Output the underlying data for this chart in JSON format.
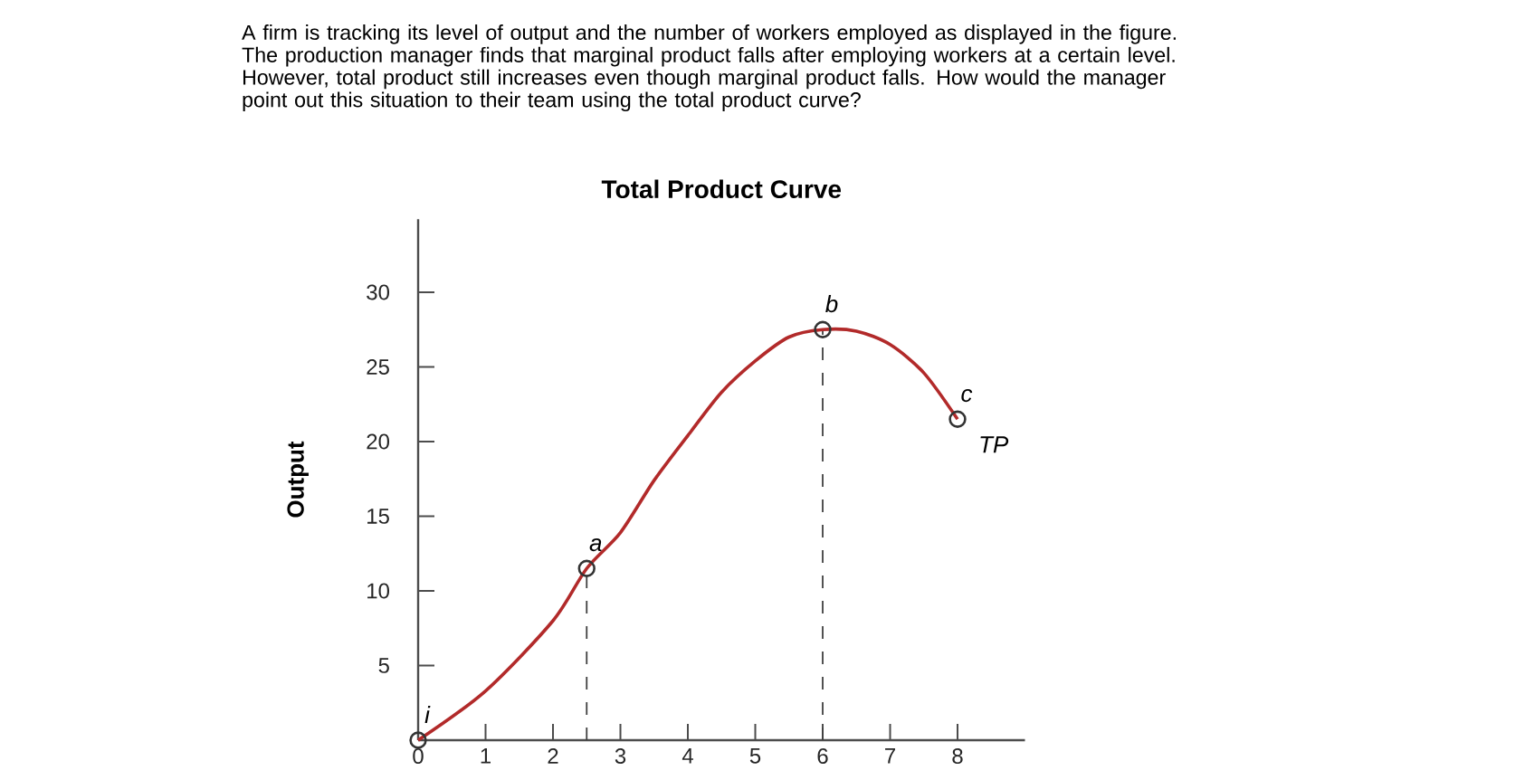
{
  "chart_data": {
    "type": "line",
    "title": "Total Product Curve",
    "ylabel": "Output",
    "annotations": [
      "A firm is tracking its level of output and the number of workers employed as displayed in the figure. The production manager finds that marginal product falls after employing workers at a certain level. However, total product still increases even though marginal product falls. How would the manager point out this situation to their team using the total product curve?",
      {
        "text": "i",
        "x": 0,
        "y": 0
      },
      {
        "text": "a",
        "x": 2.5,
        "y": 11.5
      },
      {
        "text": "b",
        "x": 6,
        "y": 27.5
      },
      {
        "text": "c",
        "x": 8,
        "y": 21.5
      }
    ],
    "series": [
      {
        "name": "TP",
        "color": "#b22a2a",
        "marker": "none",
        "line_style": "solid",
        "x": [
          0,
          1,
          2,
          2.5,
          3,
          3.5,
          4,
          4.5,
          5,
          5.5,
          6,
          6.5,
          7,
          7.5,
          8
        ],
        "values": [
          0,
          3.3,
          8,
          11.5,
          13.9,
          17.4,
          20.4,
          23.3,
          25.4,
          27,
          27.5,
          27.4,
          26.5,
          24.6,
          21.5
        ]
      },
      {
        "type": "scatter",
        "color": "#333333",
        "marker": "circle",
        "x": [
          0,
          2.5,
          6,
          8
        ],
        "values": [
          0,
          11.5,
          27.5,
          21.5
        ]
      }
    ],
    "ref_lines": [
      {
        "axis": "x",
        "value": 2.5,
        "line_style": "dashed"
      },
      {
        "axis": "x",
        "value": 6,
        "line_style": "dashed"
      }
    ],
    "xlim": [
      0,
      9
    ],
    "ylim": [
      0,
      34.9
    ],
    "xticks": [
      0,
      1,
      2,
      3,
      4,
      5,
      6,
      7,
      8
    ],
    "yticks": [
      5,
      10,
      15,
      20,
      25,
      30
    ],
    "grid": false
  }
}
